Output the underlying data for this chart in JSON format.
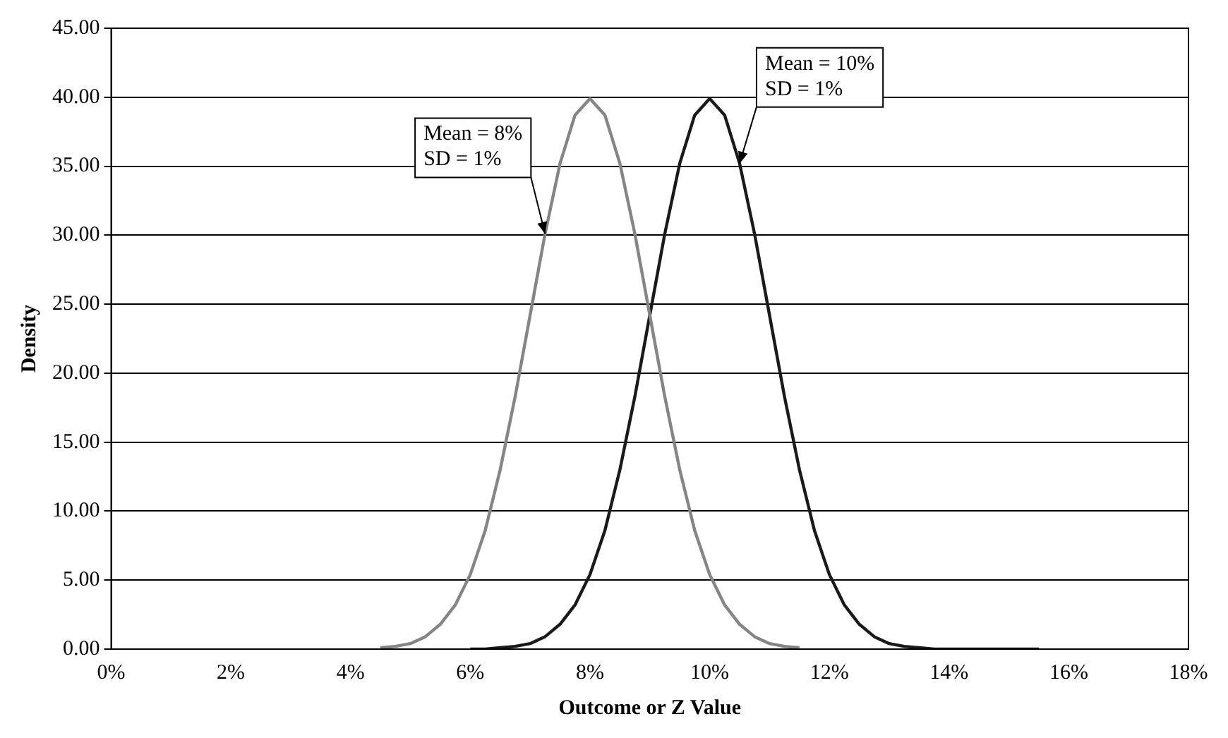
{
  "chart_data": {
    "type": "line",
    "xlabel": "Outcome or Z Value",
    "ylabel": "Density",
    "xlim": [
      0,
      18
    ],
    "xticks": [
      {
        "value": 0,
        "label": "0%"
      },
      {
        "value": 2,
        "label": "2%"
      },
      {
        "value": 4,
        "label": "4%"
      },
      {
        "value": 6,
        "label": "6%"
      },
      {
        "value": 8,
        "label": "8%"
      },
      {
        "value": 10,
        "label": "10%"
      },
      {
        "value": 12,
        "label": "12%"
      },
      {
        "value": 14,
        "label": "14%"
      },
      {
        "value": 16,
        "label": "16%"
      },
      {
        "value": 18,
        "label": "18%"
      }
    ],
    "ylim": [
      0,
      45
    ],
    "yticks": [
      {
        "value": 0,
        "label": "0.00"
      },
      {
        "value": 5,
        "label": "5.00"
      },
      {
        "value": 10,
        "label": "10.00"
      },
      {
        "value": 15,
        "label": "15.00"
      },
      {
        "value": 20,
        "label": "20.00"
      },
      {
        "value": 25,
        "label": "25.00"
      },
      {
        "value": 30,
        "label": "30.00"
      },
      {
        "value": 35,
        "label": "35.00"
      },
      {
        "value": 40,
        "label": "40.00"
      },
      {
        "value": 45,
        "label": "45.00"
      }
    ],
    "grid": "y",
    "marker": "none",
    "line_style": "solid",
    "series": [
      {
        "color": "#858585",
        "x": [
          4.5,
          4.75,
          5,
          5.25,
          5.5,
          5.75,
          6,
          6.25,
          6.5,
          6.75,
          7,
          7.25,
          7.5,
          7.75,
          8,
          8.25,
          8.5,
          8.75,
          9,
          9.25,
          9.5,
          9.75,
          10,
          10.25,
          10.5,
          10.75,
          11,
          11.25,
          11.5
        ],
        "values": [
          0.1,
          0.2,
          0.4,
          0.9,
          1.8,
          3.2,
          5.4,
          8.6,
          13.0,
          18.3,
          24.2,
          30.1,
          35.2,
          38.7,
          39.9,
          38.7,
          35.2,
          30.1,
          24.2,
          18.3,
          13.0,
          8.6,
          5.4,
          3.2,
          1.8,
          0.9,
          0.4,
          0.2,
          0.1
        ]
      },
      {
        "color": "#1a1a1a",
        "x": [
          6,
          6.25,
          6.5,
          6.75,
          7,
          7.25,
          7.5,
          7.75,
          8,
          8.25,
          8.5,
          8.75,
          9,
          9.25,
          9.5,
          9.75,
          10,
          10.25,
          10.5,
          10.75,
          11,
          11.25,
          11.5,
          11.75,
          12,
          12.25,
          12.5,
          12.75,
          13,
          13.25,
          13.5,
          13.75,
          14,
          15.5
        ],
        "values": [
          0.0,
          0.0,
          0.1,
          0.2,
          0.4,
          0.9,
          1.8,
          3.2,
          5.4,
          8.6,
          13.0,
          18.3,
          24.2,
          30.1,
          35.2,
          38.7,
          39.9,
          38.7,
          35.2,
          30.1,
          24.2,
          18.3,
          13.0,
          8.6,
          5.4,
          3.2,
          1.8,
          0.9,
          0.4,
          0.2,
          0.1,
          0.0,
          0.0,
          0.0
        ]
      }
    ],
    "annotations": [
      {
        "text": "Mean = 8%\nSD = 1%",
        "x": 7.25,
        "y": 30.1
      },
      {
        "text": "Mean = 10%\nSD = 1%",
        "x": 10.5,
        "y": 35.2
      }
    ]
  }
}
